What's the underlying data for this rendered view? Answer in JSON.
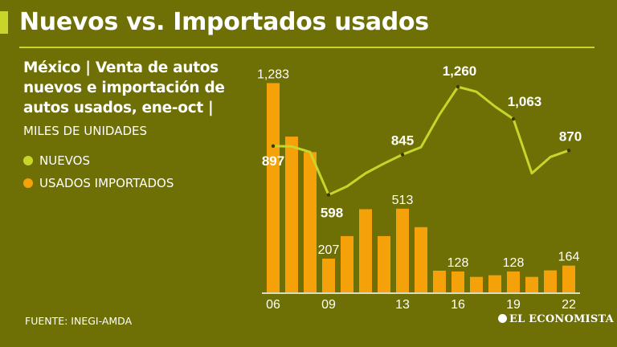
{
  "header": {
    "title": "Nuevos vs. Importados usados",
    "subtitle": "México | Venta de autos nuevos e importación de autos usados, ene-oct |",
    "units": "MILES DE UNIDADES"
  },
  "legend": {
    "nuevos": "NUEVOS",
    "usados": "USADOS IMPORTADOS"
  },
  "footer": {
    "source": "FUENTE: INEGI-AMDA",
    "brand": "EL ECONOMISTA"
  },
  "colors": {
    "background": "#6e6f05",
    "nuevos": "#c8d62a",
    "usados": "#f5a20a",
    "text": "#ffffff"
  },
  "chart_data": {
    "type": "bar",
    "x": [
      "06",
      "07",
      "08",
      "09",
      "10",
      "11",
      "12",
      "13",
      "14",
      "15",
      "16",
      "17",
      "18",
      "19",
      "20",
      "21",
      "22"
    ],
    "x_tick_labels": [
      "06",
      "",
      "",
      "09",
      "",
      "",
      "",
      "13",
      "",
      "",
      "16",
      "",
      "",
      "19",
      "",
      "",
      "22"
    ],
    "series": [
      {
        "name": "USADOS IMPORTADOS",
        "type": "bar",
        "values": [
          1283,
          955,
          860,
          207,
          345,
          510,
          345,
          513,
          400,
          133,
          128,
          95,
          105,
          128,
          95,
          135,
          164
        ],
        "labels": [
          "1,283",
          "",
          "",
          "207",
          "",
          "",
          "",
          "513",
          "",
          "",
          "128",
          "",
          "",
          "128",
          "",
          "",
          "164"
        ]
      },
      {
        "name": "NUEVOS",
        "type": "line",
        "values": [
          897,
          895,
          860,
          598,
          650,
          730,
          790,
          845,
          890,
          1090,
          1260,
          1230,
          1140,
          1063,
          730,
          830,
          870
        ],
        "labels": [
          "897",
          "",
          "",
          "598",
          "",
          "",
          "",
          "845",
          "",
          "",
          "1,260",
          "",
          "",
          "1,063",
          "",
          "",
          "870"
        ]
      }
    ],
    "ylim": [
      0,
      1300
    ],
    "grid": false
  }
}
